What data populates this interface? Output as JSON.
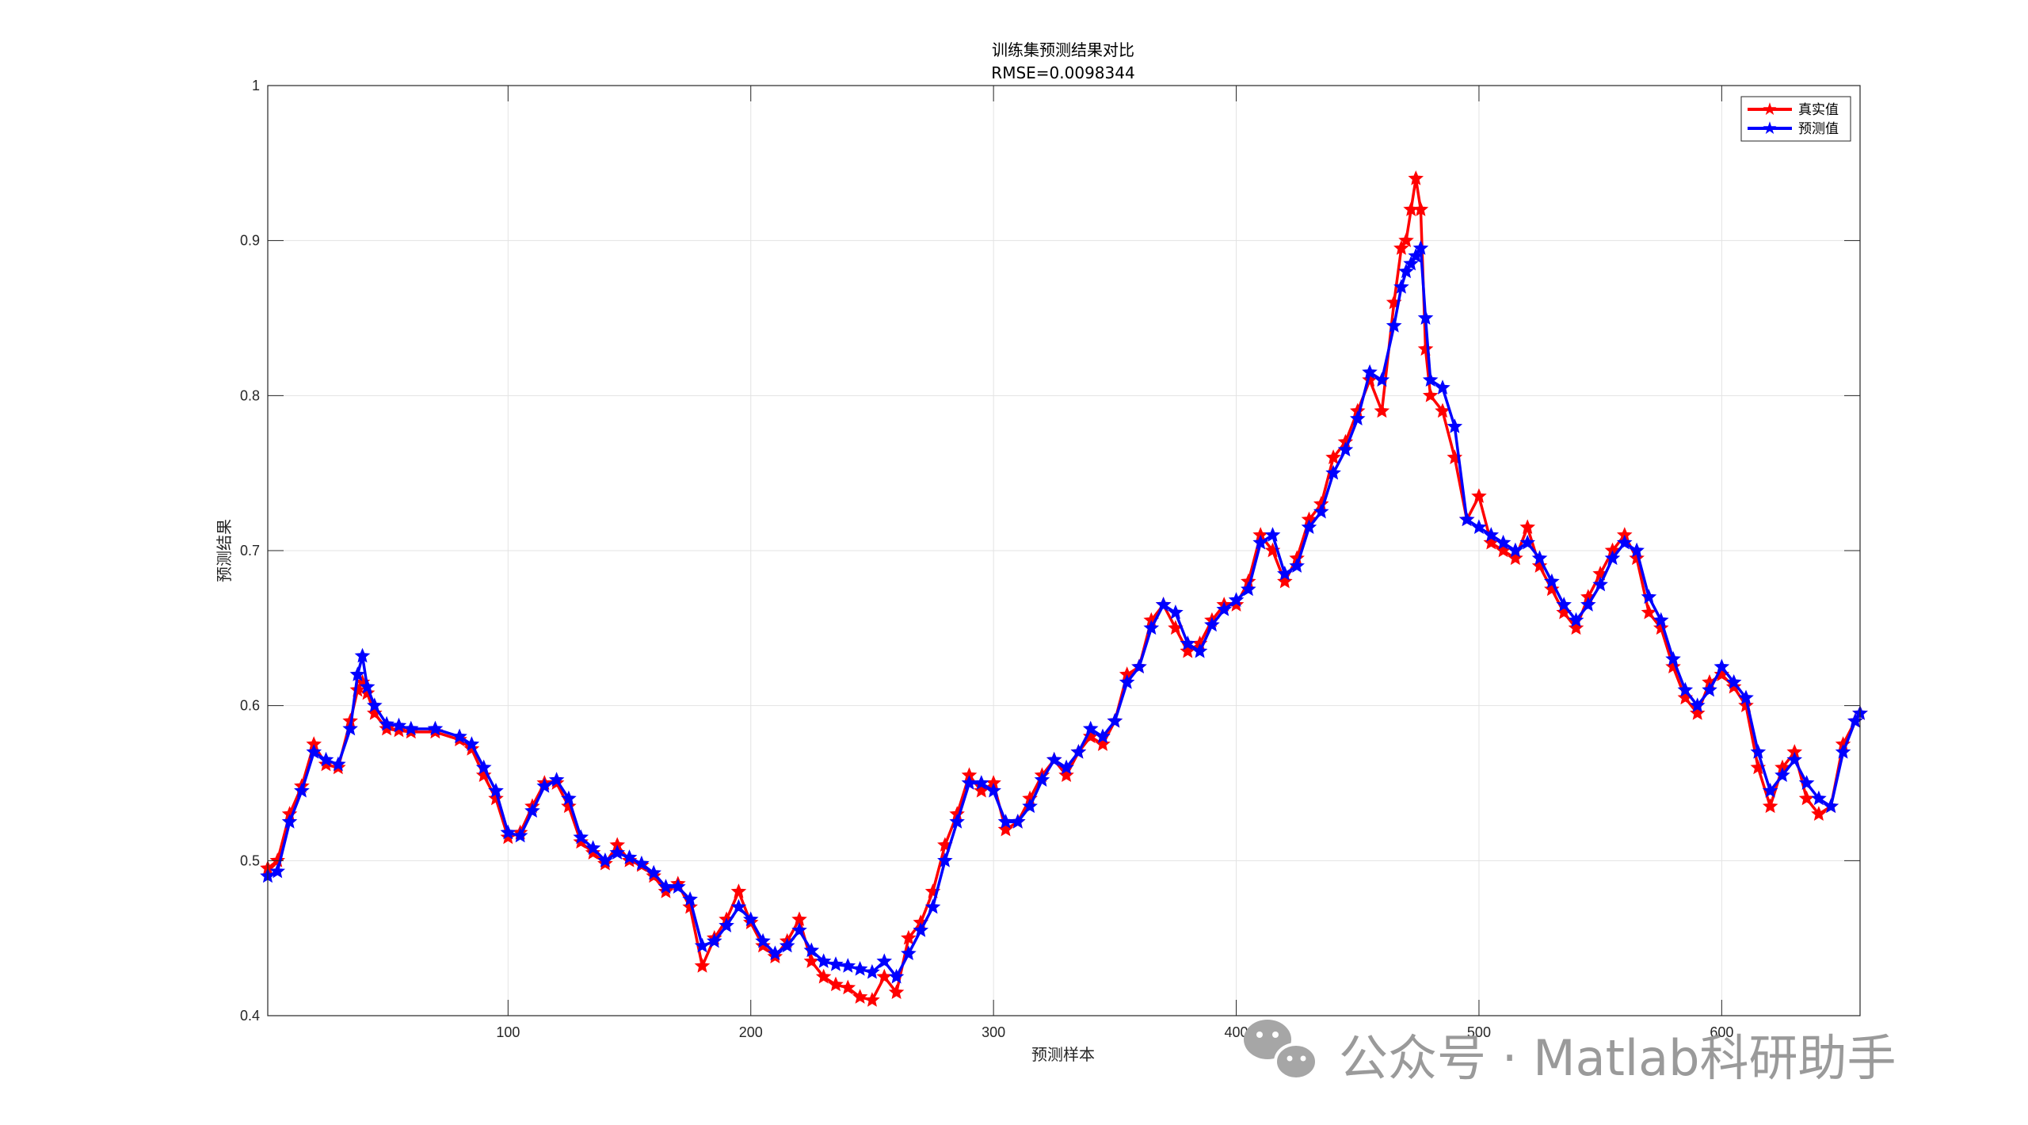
{
  "chart_data": {
    "type": "line",
    "title": "训练集预测结果对比",
    "subtitle": "RMSE=0.0098344",
    "xlabel": "预测样本",
    "ylabel": "预测结果",
    "xlim": [
      1,
      657
    ],
    "ylim": [
      0.4,
      1.0
    ],
    "xticks": [
      100,
      200,
      300,
      400,
      500,
      600
    ],
    "yticks": [
      0.4,
      0.5,
      0.6,
      0.7,
      0.8,
      0.9,
      1.0
    ],
    "grid": true,
    "legend_position": "top-right",
    "colors": {
      "true": "#ff0000",
      "pred": "#0000ff"
    },
    "series": [
      {
        "name": "真实值",
        "x": [
          1,
          5,
          10,
          15,
          20,
          25,
          30,
          35,
          38,
          40,
          42,
          45,
          50,
          55,
          60,
          70,
          80,
          85,
          90,
          95,
          100,
          105,
          110,
          115,
          120,
          125,
          130,
          135,
          140,
          145,
          150,
          155,
          160,
          165,
          170,
          175,
          180,
          185,
          190,
          195,
          200,
          205,
          210,
          215,
          220,
          225,
          230,
          235,
          240,
          245,
          250,
          255,
          260,
          265,
          270,
          275,
          280,
          285,
          290,
          295,
          300,
          305,
          310,
          315,
          320,
          325,
          330,
          335,
          340,
          345,
          350,
          355,
          360,
          365,
          370,
          375,
          380,
          385,
          390,
          395,
          400,
          405,
          410,
          415,
          420,
          425,
          430,
          435,
          440,
          445,
          450,
          455,
          460,
          465,
          468,
          470,
          472,
          474,
          476,
          478,
          480,
          485,
          490,
          495,
          500,
          505,
          510,
          515,
          520,
          525,
          530,
          535,
          540,
          545,
          550,
          555,
          560,
          565,
          570,
          575,
          580,
          585,
          590,
          595,
          600,
          605,
          610,
          615,
          620,
          625,
          630,
          635,
          640,
          645,
          650,
          655,
          657
        ],
        "values": [
          0.495,
          0.5,
          0.53,
          0.548,
          0.575,
          0.562,
          0.56,
          0.59,
          0.61,
          0.615,
          0.608,
          0.595,
          0.585,
          0.584,
          0.583,
          0.583,
          0.578,
          0.572,
          0.555,
          0.54,
          0.515,
          0.518,
          0.535,
          0.55,
          0.55,
          0.535,
          0.512,
          0.505,
          0.498,
          0.51,
          0.5,
          0.497,
          0.49,
          0.48,
          0.485,
          0.47,
          0.432,
          0.45,
          0.462,
          0.48,
          0.46,
          0.445,
          0.438,
          0.448,
          0.462,
          0.435,
          0.425,
          0.42,
          0.418,
          0.412,
          0.41,
          0.425,
          0.415,
          0.45,
          0.46,
          0.48,
          0.51,
          0.53,
          0.555,
          0.545,
          0.55,
          0.52,
          0.525,
          0.54,
          0.555,
          0.565,
          0.555,
          0.57,
          0.58,
          0.575,
          0.59,
          0.62,
          0.625,
          0.655,
          0.665,
          0.65,
          0.635,
          0.64,
          0.655,
          0.665,
          0.665,
          0.68,
          0.71,
          0.7,
          0.68,
          0.695,
          0.72,
          0.73,
          0.76,
          0.77,
          0.79,
          0.81,
          0.79,
          0.86,
          0.895,
          0.9,
          0.92,
          0.94,
          0.92,
          0.83,
          0.8,
          0.79,
          0.76,
          0.72,
          0.735,
          0.705,
          0.7,
          0.695,
          0.715,
          0.69,
          0.675,
          0.66,
          0.65,
          0.67,
          0.685,
          0.7,
          0.71,
          0.695,
          0.66,
          0.65,
          0.625,
          0.605,
          0.595,
          0.615,
          0.62,
          0.612,
          0.6,
          0.56,
          0.535,
          0.56,
          0.57,
          0.54,
          0.53,
          0.535,
          0.575,
          0.59,
          0.595
        ]
      },
      {
        "name": "预测值",
        "x": [
          1,
          5,
          10,
          15,
          20,
          25,
          30,
          35,
          38,
          40,
          42,
          45,
          50,
          55,
          60,
          70,
          80,
          85,
          90,
          95,
          100,
          105,
          110,
          115,
          120,
          125,
          130,
          135,
          140,
          145,
          150,
          155,
          160,
          165,
          170,
          175,
          180,
          185,
          190,
          195,
          200,
          205,
          210,
          215,
          220,
          225,
          230,
          235,
          240,
          245,
          250,
          255,
          260,
          265,
          270,
          275,
          280,
          285,
          290,
          295,
          300,
          305,
          310,
          315,
          320,
          325,
          330,
          335,
          340,
          345,
          350,
          355,
          360,
          365,
          370,
          375,
          380,
          385,
          390,
          395,
          400,
          405,
          410,
          415,
          420,
          425,
          430,
          435,
          440,
          445,
          450,
          455,
          460,
          465,
          468,
          470,
          472,
          474,
          476,
          478,
          480,
          485,
          490,
          495,
          500,
          505,
          510,
          515,
          520,
          525,
          530,
          535,
          540,
          545,
          550,
          555,
          560,
          565,
          570,
          575,
          580,
          585,
          590,
          595,
          600,
          605,
          610,
          615,
          620,
          625,
          630,
          635,
          640,
          645,
          650,
          655,
          657
        ],
        "values": [
          0.49,
          0.493,
          0.525,
          0.545,
          0.57,
          0.565,
          0.562,
          0.585,
          0.62,
          0.632,
          0.612,
          0.6,
          0.588,
          0.587,
          0.585,
          0.585,
          0.58,
          0.575,
          0.56,
          0.545,
          0.518,
          0.516,
          0.532,
          0.548,
          0.552,
          0.54,
          0.515,
          0.508,
          0.5,
          0.505,
          0.502,
          0.498,
          0.492,
          0.483,
          0.483,
          0.475,
          0.445,
          0.448,
          0.458,
          0.47,
          0.462,
          0.448,
          0.44,
          0.445,
          0.455,
          0.442,
          0.435,
          0.433,
          0.432,
          0.43,
          0.428,
          0.435,
          0.425,
          0.44,
          0.455,
          0.47,
          0.5,
          0.525,
          0.55,
          0.55,
          0.545,
          0.525,
          0.525,
          0.535,
          0.552,
          0.565,
          0.56,
          0.57,
          0.585,
          0.58,
          0.59,
          0.615,
          0.625,
          0.65,
          0.665,
          0.66,
          0.64,
          0.635,
          0.652,
          0.662,
          0.668,
          0.675,
          0.705,
          0.71,
          0.685,
          0.69,
          0.715,
          0.725,
          0.75,
          0.765,
          0.785,
          0.815,
          0.81,
          0.845,
          0.87,
          0.88,
          0.885,
          0.89,
          0.895,
          0.85,
          0.81,
          0.805,
          0.78,
          0.72,
          0.715,
          0.71,
          0.705,
          0.7,
          0.705,
          0.695,
          0.68,
          0.665,
          0.655,
          0.665,
          0.678,
          0.695,
          0.705,
          0.7,
          0.67,
          0.655,
          0.63,
          0.61,
          0.6,
          0.61,
          0.625,
          0.615,
          0.605,
          0.57,
          0.545,
          0.555,
          0.565,
          0.55,
          0.54,
          0.535,
          0.57,
          0.59,
          0.595
        ]
      }
    ]
  },
  "watermark": {
    "text": "公众号 · Matlab科研助手",
    "icon": "wechat-icon"
  }
}
